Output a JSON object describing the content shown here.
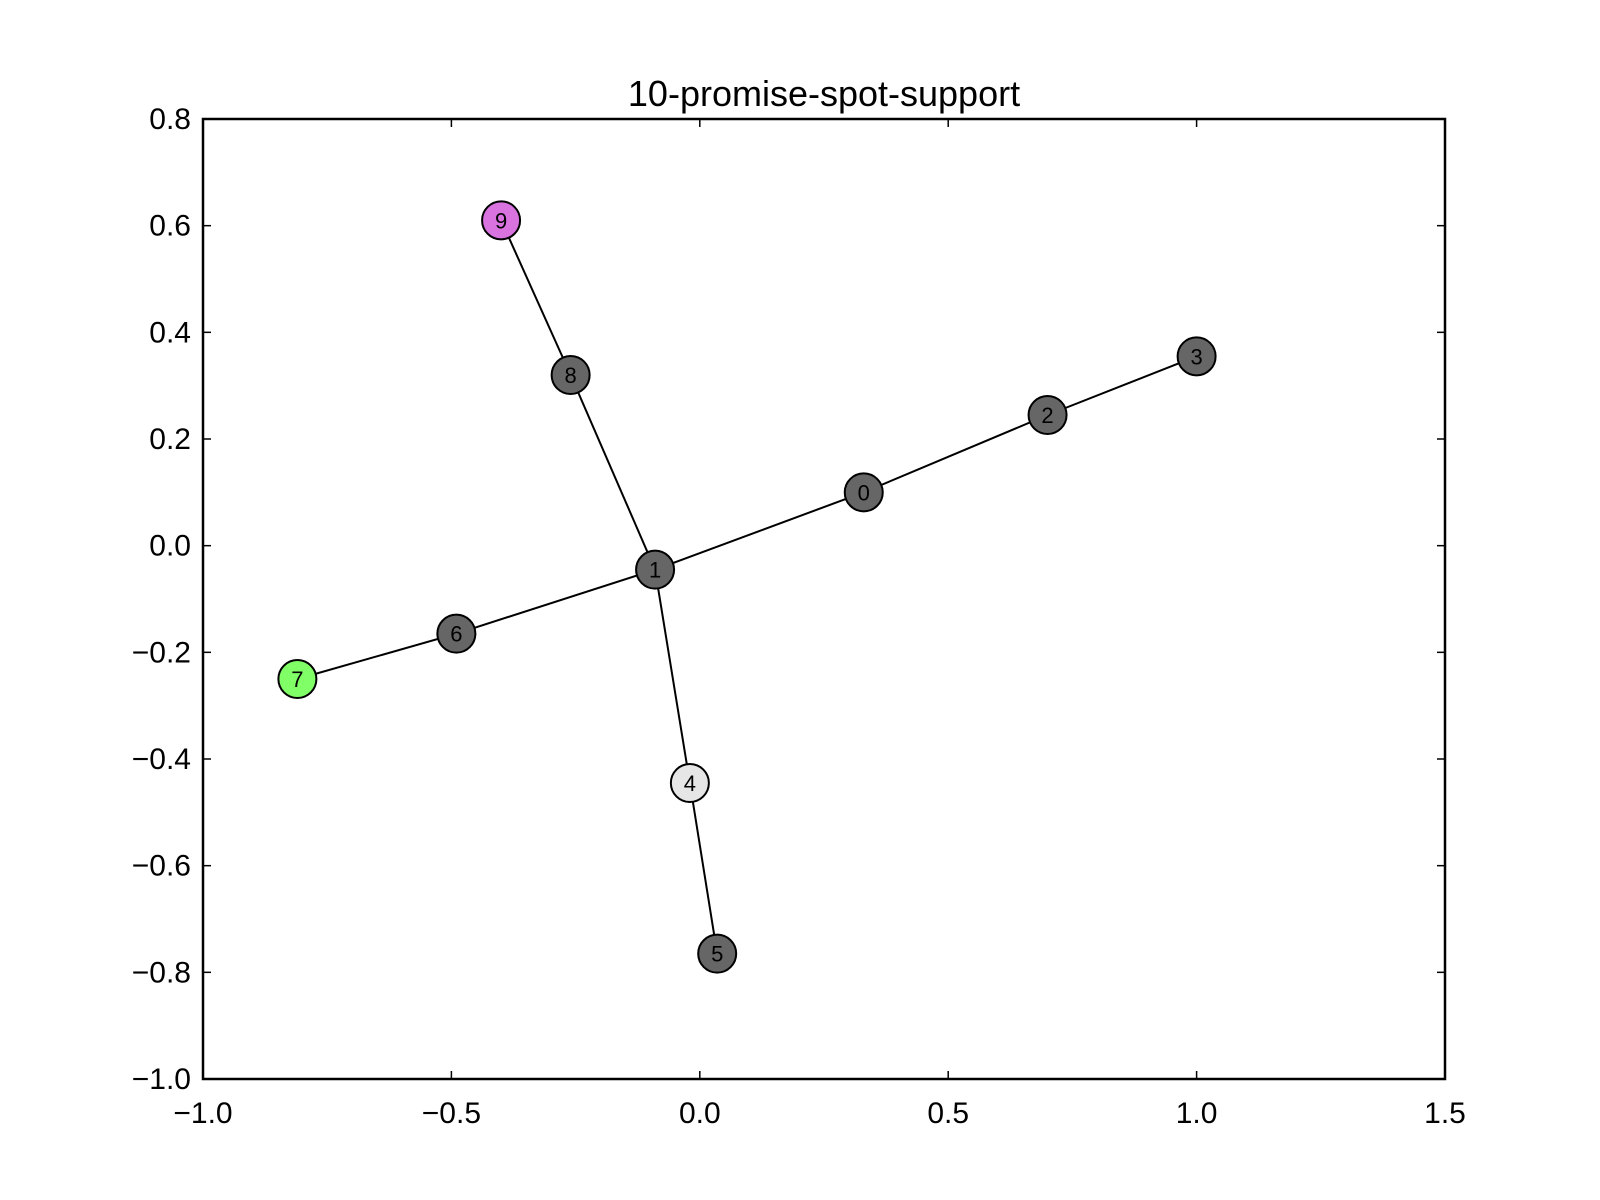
{
  "chart_data": {
    "type": "scatter",
    "title": "10-promise-spot-support",
    "xlabel": "",
    "ylabel": "",
    "xlim": [
      -1.0,
      1.5
    ],
    "ylim": [
      -1.0,
      0.8
    ],
    "xticks": [
      -1.0,
      -0.5,
      0.0,
      0.5,
      1.0,
      1.5
    ],
    "yticks": [
      -1.0,
      -0.8,
      -0.6,
      -0.4,
      -0.2,
      0.0,
      0.2,
      0.4,
      0.6,
      0.8
    ],
    "xtick_labels": [
      "−1.0",
      "−0.5",
      "0.0",
      "0.5",
      "1.0",
      "1.5"
    ],
    "ytick_labels": [
      "−1.0",
      "−0.8",
      "−0.6",
      "−0.4",
      "−0.2",
      "0.0",
      "0.2",
      "0.4",
      "0.6",
      "0.8"
    ],
    "grid": false,
    "nodes": [
      {
        "id": "0",
        "x": 0.33,
        "y": 0.1,
        "color": "#666666"
      },
      {
        "id": "1",
        "x": -0.09,
        "y": -0.045,
        "color": "#666666"
      },
      {
        "id": "2",
        "x": 0.7,
        "y": 0.245,
        "color": "#666666"
      },
      {
        "id": "3",
        "x": 1.0,
        "y": 0.355,
        "color": "#666666"
      },
      {
        "id": "4",
        "x": -0.02,
        "y": -0.445,
        "color": "#e6e6e6"
      },
      {
        "id": "5",
        "x": 0.035,
        "y": -0.765,
        "color": "#666666"
      },
      {
        "id": "6",
        "x": -0.49,
        "y": -0.165,
        "color": "#666666"
      },
      {
        "id": "7",
        "x": -0.81,
        "y": -0.25,
        "color": "#80ff66"
      },
      {
        "id": "8",
        "x": -0.26,
        "y": 0.32,
        "color": "#666666"
      },
      {
        "id": "9",
        "x": -0.4,
        "y": 0.61,
        "color": "#d873e0"
      }
    ],
    "edges": [
      [
        "9",
        "8"
      ],
      [
        "8",
        "1"
      ],
      [
        "7",
        "6"
      ],
      [
        "6",
        "1"
      ],
      [
        "1",
        "0"
      ],
      [
        "0",
        "2"
      ],
      [
        "2",
        "3"
      ],
      [
        "1",
        "4"
      ],
      [
        "4",
        "5"
      ]
    ]
  }
}
